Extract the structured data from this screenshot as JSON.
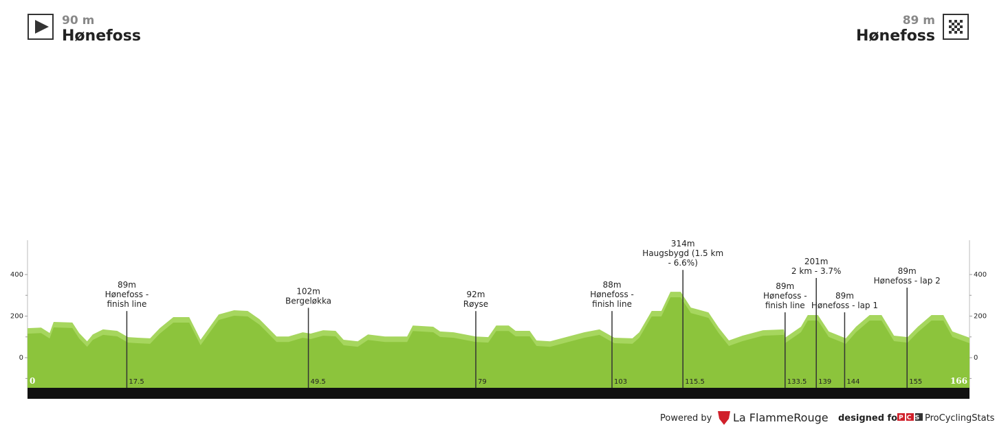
{
  "header": {
    "start": {
      "elevation": "90 m",
      "name": "Hønefoss"
    },
    "finish": {
      "elevation": "89 m",
      "name": "Hønefoss"
    }
  },
  "chart_data": {
    "type": "area",
    "x": [
      0,
      2.4,
      3.9,
      4.6,
      7.9,
      9.1,
      10.5,
      11.5,
      13.3,
      15.8,
      17.7,
      19.4,
      21.6,
      23.3,
      25.7,
      28.5,
      30.5,
      33.7,
      36.4,
      38.8,
      40.9,
      43.9,
      46.0,
      48.5,
      49.9,
      52.1,
      54.3,
      55.7,
      58.2,
      60.0,
      63.0,
      66.9,
      67.9,
      71.5,
      72.7,
      75.1,
      79.0,
      81.2,
      82.6,
      84.8,
      86.0,
      88.5,
      89.7,
      92.1,
      94.5,
      98.1,
      100.8,
      103.4,
      106.6,
      107.8,
      110.0,
      111.7,
      113.3,
      115.1,
      116.9,
      120.0,
      121.8,
      123.6,
      126.0,
      129.6,
      133.3,
      133.5,
      136.3,
      137.5,
      139.3,
      141.2,
      144.2,
      146.0,
      148.4,
      150.5,
      152.7,
      155.1,
      156.9,
      159.3,
      161.4,
      163.0,
      166
    ],
    "values": [
      142,
      145,
      119,
      172,
      169,
      119,
      79,
      112,
      136,
      129,
      99,
      96,
      93,
      142,
      195,
      195,
      86,
      208,
      228,
      225,
      185,
      102,
      102,
      122,
      116,
      132,
      129,
      86,
      79,
      112,
      102,
      102,
      155,
      149,
      126,
      122,
      102,
      99,
      155,
      155,
      129,
      129,
      83,
      79,
      96,
      122,
      136,
      96,
      93,
      122,
      225,
      225,
      317,
      317,
      241,
      218,
      145,
      83,
      106,
      132,
      136,
      96,
      149,
      205,
      205,
      126,
      93,
      149,
      205,
      205,
      106,
      99,
      149,
      205,
      205,
      126,
      96
    ],
    "color": "#a6d65e",
    "shade_color": "#8cc43c",
    "xlim": [
      0,
      166
    ],
    "ylim": [
      -145,
      565
    ],
    "yticks": [
      0,
      200,
      400
    ],
    "minor_yticks": [
      -100,
      100,
      300
    ],
    "markers": [
      {
        "km": 17.5,
        "elevation": "89m",
        "name": [
          "Hønefoss -",
          "finish line"
        ]
      },
      {
        "km": 49.5,
        "elevation": "102m",
        "name": [
          "Bergeløkka"
        ]
      },
      {
        "km": 79,
        "elevation": "92m",
        "name": [
          "Røyse"
        ]
      },
      {
        "km": 103,
        "elevation": "88m",
        "name": [
          "Hønefoss -",
          "finish line"
        ]
      },
      {
        "km": 115.5,
        "elevation": "314m",
        "name": [
          "Haugsbygd (1.5 km",
          "- 6.6%)"
        ]
      },
      {
        "km": 133.5,
        "elevation": "89m",
        "name": [
          "Hønefoss -",
          "finish line"
        ]
      },
      {
        "km": 139,
        "elevation": "201m",
        "name": [
          "2 km - 3.7%"
        ]
      },
      {
        "km": 144,
        "elevation": "89m",
        "name": [
          "Hønefoss - lap 1"
        ]
      },
      {
        "km": 155,
        "elevation": "89m",
        "name": [
          "Hønefoss - lap 2"
        ]
      }
    ]
  },
  "footer": {
    "powered_by": "Powered by",
    "brand": "La FlammeRouge",
    "designed_for": "designed for",
    "pcs": "PCS",
    "pcs_name": "ProCyclingStats"
  }
}
